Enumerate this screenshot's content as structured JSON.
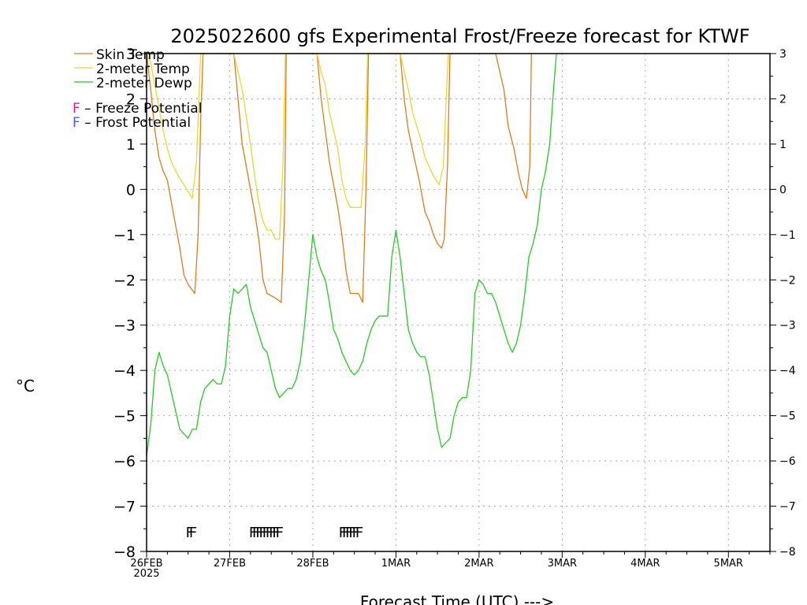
{
  "chart_data": {
    "type": "line",
    "title": "2025022600 gfs Experimental Frost/Freeze forecast for KTWF",
    "xlabel": "Forecast Time (UTC) --->",
    "ylabel": "°C",
    "ylim": [
      -8,
      3
    ],
    "xlim": [
      0,
      7.5
    ],
    "y_ticks": [
      -8,
      -7,
      -6,
      -5,
      -4,
      -3,
      -2,
      -1,
      0,
      1,
      2,
      3
    ],
    "y_tick_labels": [
      "−8",
      "−7",
      "−6",
      "−5",
      "−4",
      "−3",
      "−2",
      "−1",
      "0",
      "1",
      "2",
      "3"
    ],
    "x_ticks": [
      {
        "x": 0,
        "label": "26FEB",
        "sublabel": "2025"
      },
      {
        "x": 1,
        "label": "27FEB"
      },
      {
        "x": 2,
        "label": "28FEB"
      },
      {
        "x": 3,
        "label": "1MAR"
      },
      {
        "x": 4,
        "label": "2MAR"
      },
      {
        "x": 5,
        "label": "3MAR"
      },
      {
        "x": 6,
        "label": "4MAR"
      },
      {
        "x": 7,
        "label": "5MAR"
      }
    ],
    "grid": true,
    "legend_position": "top-left",
    "x_units": "days after 26FEB 00UTC",
    "series": [
      {
        "name": "Skin Temp",
        "color": "#e07b1a",
        "points": [
          [
            0.0,
            3.2
          ],
          [
            0.05,
            2.2
          ],
          [
            0.1,
            1.3
          ],
          [
            0.15,
            0.7
          ],
          [
            0.2,
            0.4
          ],
          [
            0.25,
            0.2
          ],
          [
            0.3,
            -0.3
          ],
          [
            0.35,
            -0.8
          ],
          [
            0.4,
            -1.3
          ],
          [
            0.45,
            -1.9
          ],
          [
            0.5,
            -2.1
          ],
          [
            0.58,
            -2.3
          ],
          [
            0.62,
            -1.0
          ],
          [
            0.65,
            1.5
          ],
          [
            0.68,
            3.2
          ],
          [
            1.05,
            3.2
          ],
          [
            1.1,
            2.0
          ],
          [
            1.15,
            1.0
          ],
          [
            1.2,
            0.5
          ],
          [
            1.25,
            0.0
          ],
          [
            1.3,
            -0.5
          ],
          [
            1.35,
            -1.1
          ],
          [
            1.4,
            -2.0
          ],
          [
            1.45,
            -2.3
          ],
          [
            1.55,
            -2.4
          ],
          [
            1.62,
            -2.5
          ],
          [
            1.66,
            -0.5
          ],
          [
            1.68,
            3.2
          ],
          [
            2.05,
            3.2
          ],
          [
            2.1,
            2.0
          ],
          [
            2.15,
            1.3
          ],
          [
            2.2,
            0.6
          ],
          [
            2.25,
            0.1
          ],
          [
            2.3,
            -0.4
          ],
          [
            2.35,
            -1.0
          ],
          [
            2.4,
            -1.8
          ],
          [
            2.45,
            -2.3
          ],
          [
            2.55,
            -2.3
          ],
          [
            2.6,
            -2.5
          ],
          [
            2.64,
            0.0
          ],
          [
            2.67,
            3.2
          ],
          [
            3.05,
            3.2
          ],
          [
            3.1,
            2.0
          ],
          [
            3.15,
            1.3
          ],
          [
            3.22,
            0.7
          ],
          [
            3.28,
            0.2
          ],
          [
            3.35,
            -0.5
          ],
          [
            3.4,
            -0.7
          ],
          [
            3.45,
            -1.0
          ],
          [
            3.5,
            -1.2
          ],
          [
            3.55,
            -1.3
          ],
          [
            3.58,
            -1.1
          ],
          [
            3.62,
            0.5
          ],
          [
            3.65,
            3.2
          ],
          [
            4.2,
            3.2
          ],
          [
            4.25,
            2.6
          ],
          [
            4.3,
            2.2
          ],
          [
            4.35,
            1.4
          ],
          [
            4.42,
            0.9
          ],
          [
            4.47,
            0.4
          ],
          [
            4.52,
            0.0
          ],
          [
            4.57,
            -0.2
          ],
          [
            4.61,
            0.5
          ],
          [
            4.63,
            3.2
          ]
        ]
      },
      {
        "name": "2-meter Temp",
        "color": "#e8d830",
        "points": [
          [
            0.0,
            3.2
          ],
          [
            0.05,
            2.8
          ],
          [
            0.1,
            2.3
          ],
          [
            0.15,
            1.8
          ],
          [
            0.2,
            1.3
          ],
          [
            0.25,
            0.9
          ],
          [
            0.3,
            0.6
          ],
          [
            0.38,
            0.3
          ],
          [
            0.45,
            0.1
          ],
          [
            0.55,
            -0.2
          ],
          [
            0.6,
            0.6
          ],
          [
            0.63,
            2.0
          ],
          [
            0.65,
            3.2
          ],
          [
            1.05,
            3.2
          ],
          [
            1.1,
            2.6
          ],
          [
            1.15,
            2.2
          ],
          [
            1.2,
            1.6
          ],
          [
            1.25,
            1.0
          ],
          [
            1.3,
            0.3
          ],
          [
            1.35,
            -0.3
          ],
          [
            1.4,
            -0.7
          ],
          [
            1.45,
            -0.9
          ],
          [
            1.5,
            -0.9
          ],
          [
            1.55,
            -1.1
          ],
          [
            1.6,
            -1.1
          ],
          [
            1.64,
            0.5
          ],
          [
            1.67,
            3.2
          ],
          [
            2.05,
            3.2
          ],
          [
            2.1,
            2.6
          ],
          [
            2.15,
            2.3
          ],
          [
            2.2,
            1.7
          ],
          [
            2.25,
            1.3
          ],
          [
            2.3,
            0.9
          ],
          [
            2.35,
            0.2
          ],
          [
            2.4,
            -0.2
          ],
          [
            2.45,
            -0.4
          ],
          [
            2.5,
            -0.4
          ],
          [
            2.58,
            -0.4
          ],
          [
            2.63,
            1.0
          ],
          [
            2.66,
            3.2
          ],
          [
            3.05,
            3.2
          ],
          [
            3.1,
            2.6
          ],
          [
            3.15,
            2.2
          ],
          [
            3.2,
            1.7
          ],
          [
            3.25,
            1.4
          ],
          [
            3.3,
            1.1
          ],
          [
            3.35,
            0.7
          ],
          [
            3.4,
            0.5
          ],
          [
            3.45,
            0.3
          ],
          [
            3.52,
            0.1
          ],
          [
            3.57,
            0.5
          ],
          [
            3.6,
            1.8
          ],
          [
            3.63,
            3.2
          ]
        ]
      },
      {
        "name": "2-meter Dewp",
        "color": "#22cc22",
        "points": [
          [
            0.0,
            -5.9
          ],
          [
            0.05,
            -5.2
          ],
          [
            0.1,
            -4.0
          ],
          [
            0.15,
            -3.6
          ],
          [
            0.2,
            -3.9
          ],
          [
            0.25,
            -4.1
          ],
          [
            0.3,
            -4.5
          ],
          [
            0.35,
            -4.9
          ],
          [
            0.4,
            -5.3
          ],
          [
            0.5,
            -5.5
          ],
          [
            0.55,
            -5.3
          ],
          [
            0.6,
            -5.3
          ],
          [
            0.65,
            -4.7
          ],
          [
            0.7,
            -4.4
          ],
          [
            0.75,
            -4.3
          ],
          [
            0.8,
            -4.2
          ],
          [
            0.85,
            -4.3
          ],
          [
            0.9,
            -4.3
          ],
          [
            0.95,
            -3.9
          ],
          [
            1.0,
            -2.8
          ],
          [
            1.05,
            -2.2
          ],
          [
            1.1,
            -2.3
          ],
          [
            1.15,
            -2.2
          ],
          [
            1.2,
            -2.1
          ],
          [
            1.25,
            -2.6
          ],
          [
            1.3,
            -2.9
          ],
          [
            1.35,
            -3.2
          ],
          [
            1.4,
            -3.5
          ],
          [
            1.45,
            -3.6
          ],
          [
            1.5,
            -4.0
          ],
          [
            1.55,
            -4.4
          ],
          [
            1.6,
            -4.6
          ],
          [
            1.65,
            -4.5
          ],
          [
            1.7,
            -4.4
          ],
          [
            1.75,
            -4.4
          ],
          [
            1.8,
            -4.2
          ],
          [
            1.85,
            -3.8
          ],
          [
            1.9,
            -3.0
          ],
          [
            1.95,
            -2.0
          ],
          [
            2.0,
            -1.0
          ],
          [
            2.05,
            -1.5
          ],
          [
            2.1,
            -1.8
          ],
          [
            2.15,
            -2.0
          ],
          [
            2.2,
            -2.5
          ],
          [
            2.25,
            -3.1
          ],
          [
            2.3,
            -3.3
          ],
          [
            2.35,
            -3.6
          ],
          [
            2.4,
            -3.8
          ],
          [
            2.45,
            -4.0
          ],
          [
            2.5,
            -4.1
          ],
          [
            2.55,
            -4.0
          ],
          [
            2.6,
            -3.8
          ],
          [
            2.65,
            -3.4
          ],
          [
            2.7,
            -3.1
          ],
          [
            2.75,
            -2.9
          ],
          [
            2.8,
            -2.8
          ],
          [
            2.9,
            -2.8
          ],
          [
            2.95,
            -1.5
          ],
          [
            3.0,
            -0.9
          ],
          [
            3.05,
            -1.5
          ],
          [
            3.1,
            -2.3
          ],
          [
            3.15,
            -3.1
          ],
          [
            3.2,
            -3.4
          ],
          [
            3.25,
            -3.6
          ],
          [
            3.3,
            -3.7
          ],
          [
            3.35,
            -3.7
          ],
          [
            3.4,
            -4.1
          ],
          [
            3.45,
            -4.7
          ],
          [
            3.5,
            -5.3
          ],
          [
            3.55,
            -5.7
          ],
          [
            3.6,
            -5.6
          ],
          [
            3.65,
            -5.5
          ],
          [
            3.7,
            -5.0
          ],
          [
            3.75,
            -4.7
          ],
          [
            3.8,
            -4.6
          ],
          [
            3.85,
            -4.6
          ],
          [
            3.9,
            -4.0
          ],
          [
            3.95,
            -2.3
          ],
          [
            4.0,
            -2.0
          ],
          [
            4.05,
            -2.1
          ],
          [
            4.1,
            -2.3
          ],
          [
            4.15,
            -2.3
          ],
          [
            4.2,
            -2.5
          ],
          [
            4.25,
            -2.8
          ],
          [
            4.3,
            -3.1
          ],
          [
            4.35,
            -3.4
          ],
          [
            4.4,
            -3.6
          ],
          [
            4.45,
            -3.4
          ],
          [
            4.5,
            -3.0
          ],
          [
            4.55,
            -2.3
          ],
          [
            4.6,
            -1.5
          ],
          [
            4.65,
            -1.2
          ],
          [
            4.7,
            -0.8
          ],
          [
            4.75,
            0.0
          ],
          [
            4.8,
            0.4
          ],
          [
            4.85,
            1.0
          ],
          [
            4.9,
            2.3
          ],
          [
            4.93,
            3.0
          ],
          [
            4.95,
            3.2
          ]
        ]
      }
    ],
    "frost_freeze_markers": [
      {
        "x": 0.52,
        "y": -7.55,
        "label": "F",
        "type": "freeze"
      },
      {
        "x": 0.56,
        "y": -7.55,
        "label": "F",
        "type": "freeze"
      },
      {
        "x": 1.28,
        "y": -7.55,
        "label": "F",
        "type": "freeze"
      },
      {
        "x": 1.32,
        "y": -7.55,
        "label": "F",
        "type": "freeze"
      },
      {
        "x": 1.36,
        "y": -7.55,
        "label": "F",
        "type": "freeze"
      },
      {
        "x": 1.4,
        "y": -7.55,
        "label": "F",
        "type": "freeze"
      },
      {
        "x": 1.44,
        "y": -7.55,
        "label": "F",
        "type": "freeze"
      },
      {
        "x": 1.48,
        "y": -7.55,
        "label": "F",
        "type": "freeze"
      },
      {
        "x": 1.52,
        "y": -7.55,
        "label": "F",
        "type": "freeze"
      },
      {
        "x": 1.56,
        "y": -7.55,
        "label": "F",
        "type": "freeze"
      },
      {
        "x": 1.6,
        "y": -7.55,
        "label": "F",
        "type": "freeze"
      },
      {
        "x": 2.36,
        "y": -7.55,
        "label": "F",
        "type": "freeze"
      },
      {
        "x": 2.4,
        "y": -7.55,
        "label": "F",
        "type": "freeze"
      },
      {
        "x": 2.44,
        "y": -7.55,
        "label": "F",
        "type": "freeze"
      },
      {
        "x": 2.48,
        "y": -7.55,
        "label": "F",
        "type": "freeze"
      },
      {
        "x": 2.52,
        "y": -7.55,
        "label": "F",
        "type": "freeze"
      },
      {
        "x": 2.56,
        "y": -7.55,
        "label": "F",
        "type": "freeze"
      }
    ],
    "legend_extra": [
      {
        "marker": "F",
        "text": " – Freeze Potential",
        "color": "#d0209a"
      },
      {
        "marker": "F",
        "text": " – Frost Potential",
        "color": "#4a5ee8"
      }
    ],
    "colors": {
      "freeze": "#d0209a",
      "frost": "#4a5ee8",
      "grid": "#aaaaaa",
      "axis": "#000000"
    }
  }
}
